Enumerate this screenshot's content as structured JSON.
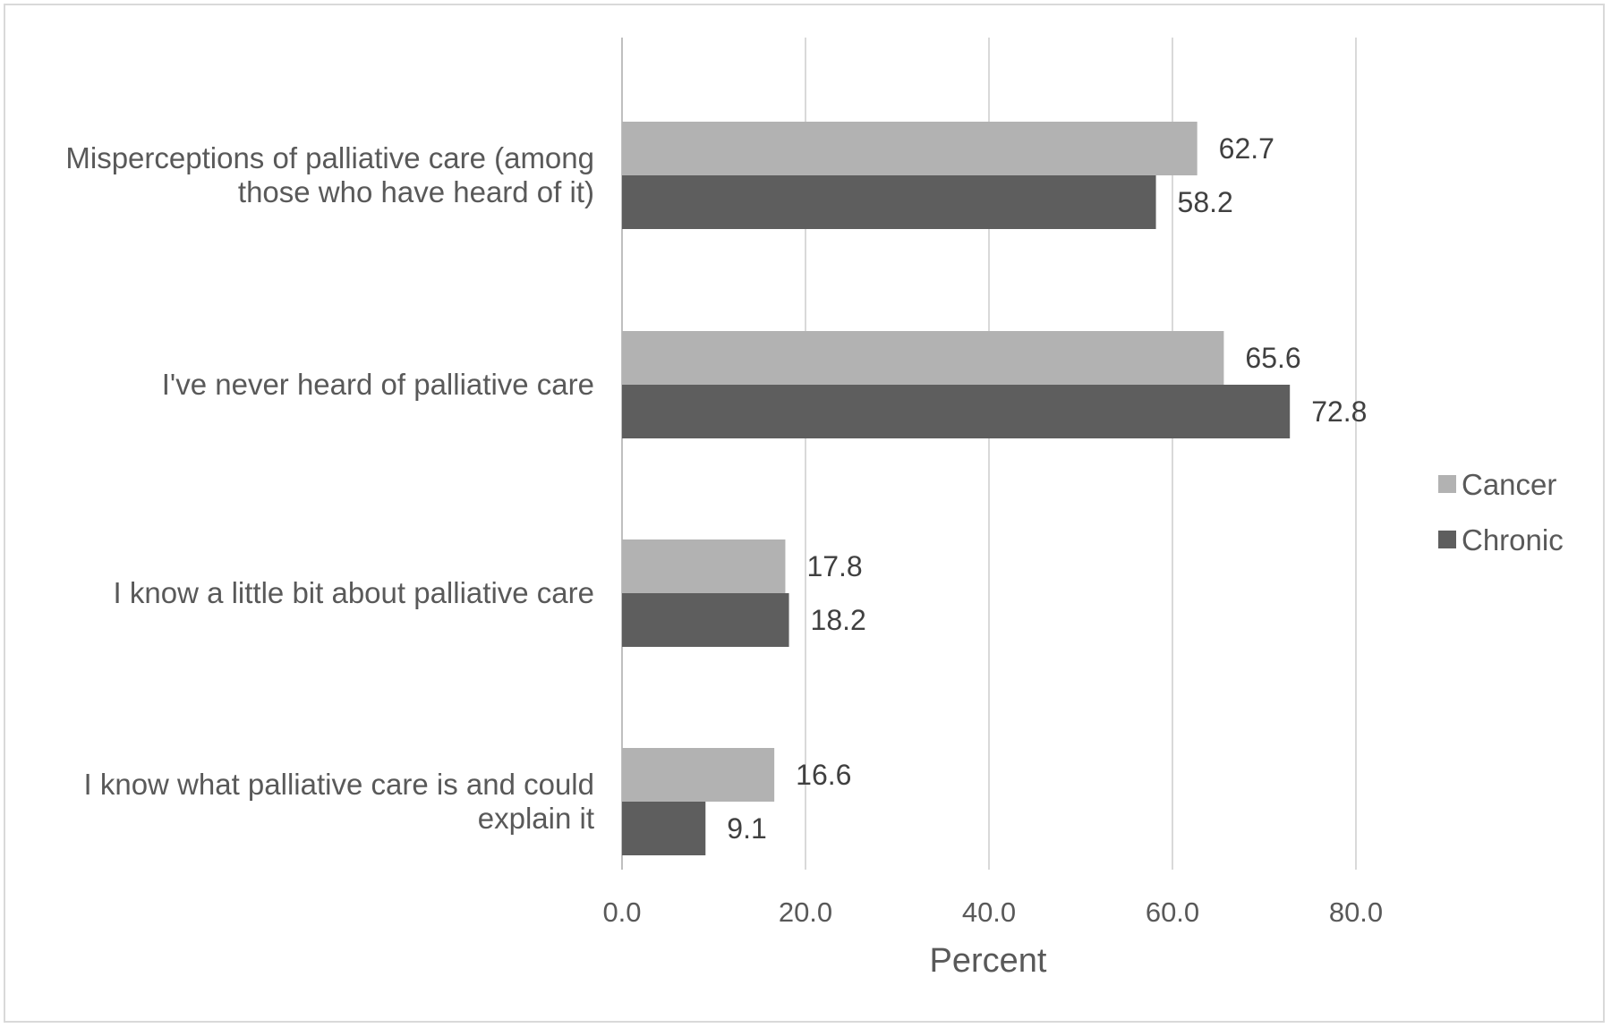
{
  "chart_data": {
    "type": "bar",
    "orientation": "horizontal",
    "categories": [
      [
        "Misperceptions of palliative care (among",
        "those who have heard of it)"
      ],
      [
        "I've never heard of palliative care"
      ],
      [
        "I know a little bit about palliative care"
      ],
      [
        "I know what palliative care is and could",
        "explain it"
      ]
    ],
    "series": [
      {
        "name": "Cancer",
        "color": "#b2b2b2",
        "values": [
          62.7,
          65.6,
          17.8,
          16.6
        ],
        "labels": [
          "62.7",
          "65.6",
          "17.8",
          "16.6"
        ]
      },
      {
        "name": "Chronic",
        "color": "#5e5e5e",
        "values": [
          58.2,
          72.8,
          18.2,
          9.1
        ],
        "labels": [
          "58.2",
          "72.8",
          "18.2",
          "9.1"
        ]
      }
    ],
    "xlabel": "Percent",
    "xlim": [
      0,
      80
    ],
    "xticks": [
      "0.0",
      "20.0",
      "40.0",
      "60.0",
      "80.0"
    ],
    "grid": true,
    "legend_position": "right"
  }
}
